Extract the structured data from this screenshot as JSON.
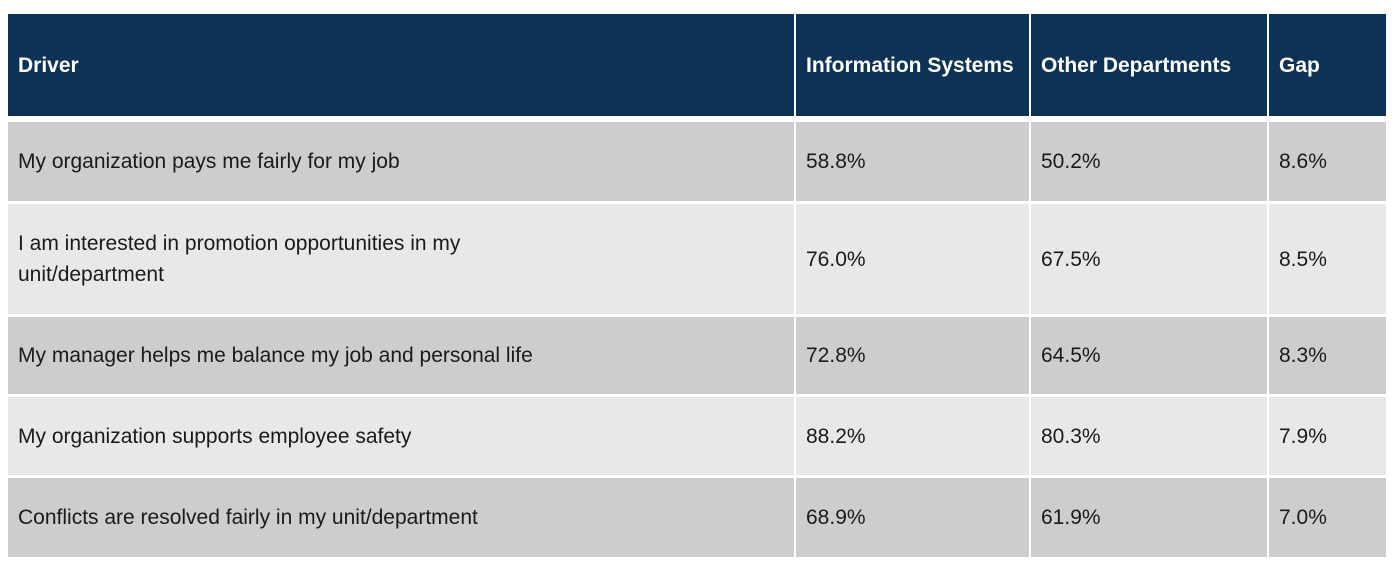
{
  "table": {
    "headers": {
      "driver": "Driver",
      "information_systems": "Information Systems",
      "other_departments": "Other Departments",
      "gap": "Gap"
    },
    "rows": [
      {
        "driver": "My organization pays me fairly for my job",
        "information_systems": "58.8%",
        "other_departments": "50.2%",
        "gap": "8.6%"
      },
      {
        "driver": "I am interested in promotion opportunities in my unit/department",
        "information_systems": "76.0%",
        "other_departments": "67.5%",
        "gap": "8.5%"
      },
      {
        "driver": "My manager helps me balance my job and personal life",
        "information_systems": "72.8%",
        "other_departments": "64.5%",
        "gap": "8.3%"
      },
      {
        "driver": "My organization supports employee safety",
        "information_systems": "88.2%",
        "other_departments": "80.3%",
        "gap": "7.9%"
      },
      {
        "driver": "Conflicts are resolved fairly in my unit/department",
        "information_systems": "68.9%",
        "other_departments": "61.9%",
        "gap": "7.0%"
      }
    ]
  },
  "colors": {
    "header_bg": "#0d3256",
    "header_text": "#ffffff",
    "row_dark": "#cdcdcf",
    "row_light": "#e8e8e8"
  }
}
